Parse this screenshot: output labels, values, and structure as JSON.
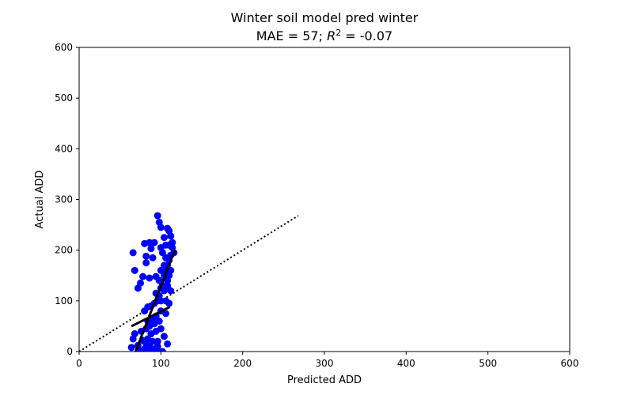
{
  "chart_data": {
    "type": "scatter",
    "title": "Winter soil model pred winter",
    "subtitle_prefix": "MAE = 57; ",
    "subtitle_r": "R",
    "subtitle_sup": "2",
    "subtitle_suffix": " = -0.07",
    "xlabel": "Predicted ADD",
    "ylabel": "Actual ADD",
    "xlim": [
      0,
      600
    ],
    "ylim": [
      0,
      600
    ],
    "xticks": [
      0,
      100,
      200,
      300,
      400,
      500,
      600
    ],
    "yticks": [
      0,
      100,
      200,
      300,
      400,
      500,
      600
    ],
    "grid": false,
    "colors": {
      "points": "#0000ff",
      "fit": "#000000",
      "identity": "#000000"
    },
    "points": [
      [
        66,
        195
      ],
      [
        68,
        160
      ],
      [
        72,
        125
      ],
      [
        75,
        135
      ],
      [
        78,
        148
      ],
      [
        80,
        213
      ],
      [
        82,
        175
      ],
      [
        82,
        188
      ],
      [
        86,
        215
      ],
      [
        88,
        203
      ],
      [
        86,
        145
      ],
      [
        90,
        185
      ],
      [
        92,
        215
      ],
      [
        94,
        148
      ],
      [
        96,
        268
      ],
      [
        98,
        255
      ],
      [
        100,
        245
      ],
      [
        100,
        205
      ],
      [
        102,
        195
      ],
      [
        104,
        225
      ],
      [
        106,
        210
      ],
      [
        108,
        243
      ],
      [
        110,
        238
      ],
      [
        112,
        228
      ],
      [
        114,
        205
      ],
      [
        116,
        195
      ],
      [
        112,
        190
      ],
      [
        110,
        180
      ],
      [
        108,
        170
      ],
      [
        106,
        160
      ],
      [
        104,
        150
      ],
      [
        108,
        140
      ],
      [
        112,
        120
      ],
      [
        104,
        120
      ],
      [
        100,
        125
      ],
      [
        98,
        110
      ],
      [
        96,
        100
      ],
      [
        92,
        95
      ],
      [
        88,
        90
      ],
      [
        84,
        88
      ],
      [
        80,
        80
      ],
      [
        94,
        70
      ],
      [
        100,
        80
      ],
      [
        106,
        75
      ],
      [
        110,
        95
      ],
      [
        98,
        60
      ],
      [
        92,
        55
      ],
      [
        86,
        50
      ],
      [
        82,
        45
      ],
      [
        88,
        35
      ],
      [
        94,
        40
      ],
      [
        100,
        45
      ],
      [
        104,
        30
      ],
      [
        108,
        15
      ],
      [
        84,
        25
      ],
      [
        90,
        20
      ],
      [
        96,
        20
      ],
      [
        86,
        10
      ],
      [
        80,
        5
      ],
      [
        92,
        5
      ],
      [
        98,
        0
      ],
      [
        102,
        0
      ],
      [
        64,
        8
      ],
      [
        66,
        25
      ],
      [
        68,
        35
      ],
      [
        72,
        12
      ],
      [
        76,
        40
      ],
      [
        78,
        22
      ],
      [
        74,
        2
      ],
      [
        82,
        15
      ],
      [
        88,
        0
      ],
      [
        96,
        10
      ],
      [
        102,
        130
      ],
      [
        106,
        185
      ],
      [
        110,
        210
      ],
      [
        114,
        215
      ],
      [
        100,
        160
      ],
      [
        104,
        170
      ],
      [
        98,
        140
      ],
      [
        106,
        100
      ],
      [
        100,
        100
      ],
      [
        94,
        115
      ],
      [
        90,
        65
      ],
      [
        84,
        60
      ],
      [
        110,
        150
      ],
      [
        112,
        160
      ],
      [
        108,
        130
      ]
    ],
    "fit_lines": [
      {
        "x": [
          69,
          117
        ],
        "y": [
          0,
          200
        ]
      },
      {
        "x": [
          64,
          111
        ],
        "y": [
          50,
          88
        ]
      }
    ],
    "identity_line": {
      "x": [
        0,
        268
      ],
      "y": [
        0,
        268
      ]
    }
  }
}
